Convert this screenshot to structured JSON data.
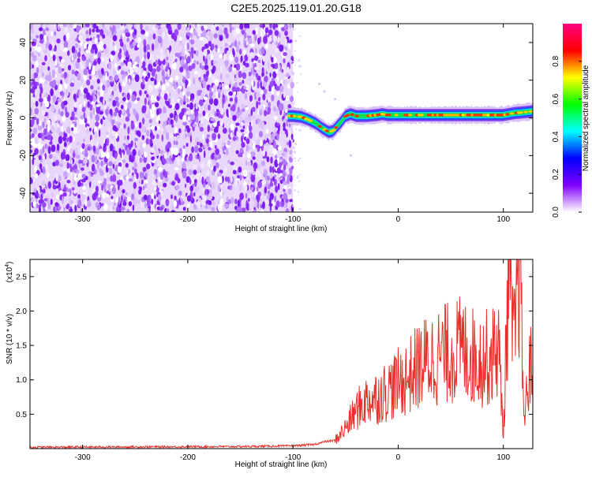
{
  "page": {
    "title": "C2E5.2025.119.01.20.G18"
  },
  "chart_data": [
    {
      "type": "heatmap",
      "xlabel": "Height of straight line (km)",
      "ylabel": "Frequency (Hz)",
      "xlim": [
        -350,
        128
      ],
      "ylim": [
        -50,
        50
      ],
      "x_ticks": [
        -300,
        -200,
        -100,
        0,
        100
      ],
      "y_ticks": [
        -40,
        -20,
        0,
        20,
        40
      ],
      "grid": false,
      "noise_region": {
        "x_range": [
          -350,
          -100
        ],
        "y_range": [
          -50,
          50
        ]
      },
      "ridge": {
        "x": [
          -105,
          -100,
          -92,
          -85,
          -78,
          -72,
          -66,
          -62,
          -58,
          -54,
          -50,
          -45,
          -40,
          -30,
          -20,
          -15,
          -10,
          0,
          20,
          50,
          80,
          100,
          110,
          120,
          128
        ],
        "y": [
          1,
          1,
          0.5,
          -1,
          -3,
          -5.5,
          -7.5,
          -7,
          -4.5,
          -2,
          1,
          2,
          1,
          1,
          1.5,
          2,
          1.5,
          1.5,
          1.5,
          1.5,
          1.5,
          1.5,
          2.5,
          3,
          3.5
        ]
      },
      "colorbar": {
        "label": "Normalized spectral amplitude",
        "ticks": [
          "0.0",
          "0.2",
          "0.4",
          "0.6",
          "0.8"
        ],
        "range": [
          0,
          1
        ],
        "colors": [
          "#ffffff",
          "#8000ff",
          "#0000ff",
          "#00ffff",
          "#00ff00",
          "#ffff00",
          "#ff0000",
          "#ff0080"
        ]
      }
    },
    {
      "type": "line",
      "xlabel": "Height of straight line (km)",
      "ylabel": "SNR (10 * v/v)",
      "y_multiplier": "(x10",
      "y_multiplier_exp": "4",
      "xlim": [
        -350,
        128
      ],
      "ylim": [
        0,
        2.75
      ],
      "x_ticks": [
        -300,
        -200,
        -100,
        0,
        100
      ],
      "y_ticks": [
        "0.5",
        "1.0",
        "1.5",
        "2.0",
        "2.5"
      ],
      "line_color": "#e8302a",
      "series": [
        {
          "x": [
            -350,
            -150,
            -100,
            -80,
            -70,
            -60,
            -50,
            -40,
            -30,
            -20,
            -10,
            0,
            10,
            20,
            30,
            40,
            50,
            60,
            70,
            80,
            90,
            95,
            100,
            105,
            110,
            115,
            120,
            125,
            128
          ],
          "y": [
            0.02,
            0.03,
            0.04,
            0.06,
            0.1,
            0.12,
            0.3,
            0.55,
            0.7,
            0.75,
            0.85,
            0.95,
            1.05,
            1.2,
            1.3,
            1.35,
            1.4,
            1.45,
            1.35,
            1.3,
            1.35,
            1.6,
            0.2,
            2.6,
            1.4,
            2.75,
            0.4,
            1.2,
            1.1
          ]
        }
      ]
    }
  ]
}
